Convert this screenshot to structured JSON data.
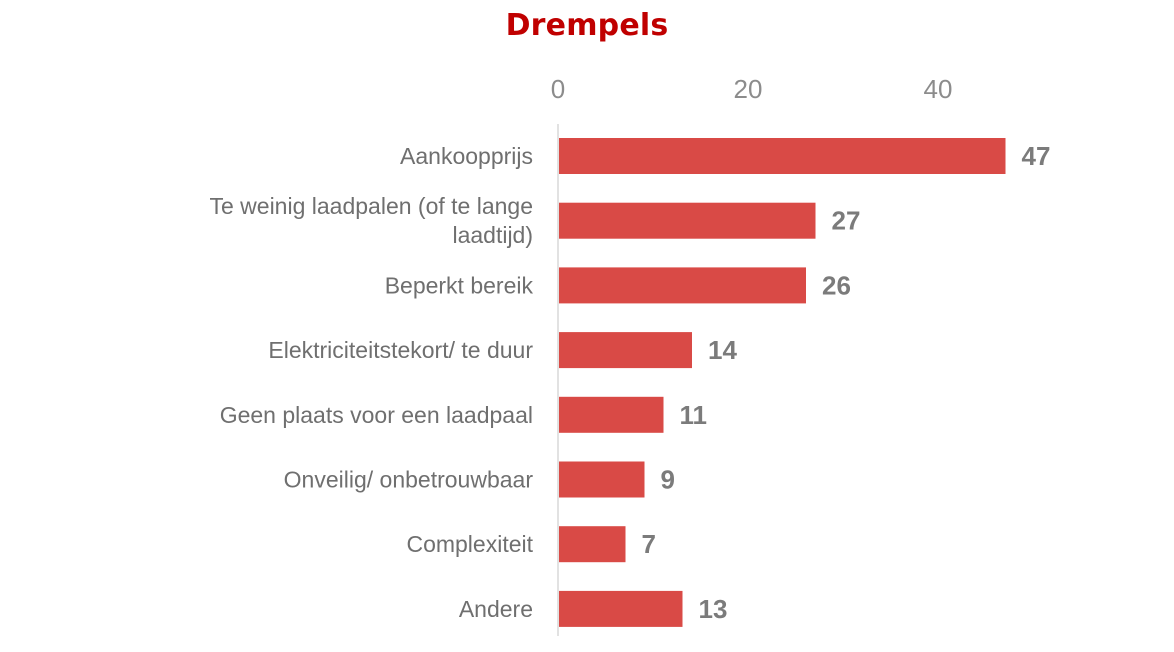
{
  "chart_data": {
    "type": "bar",
    "orientation": "horizontal",
    "title": "Drempels",
    "xlabel": "",
    "ylabel": "",
    "xlim": [
      0,
      47
    ],
    "x_ticks": [
      "0",
      "20",
      "40"
    ],
    "tick_position": "top",
    "grid": false,
    "legend": "none",
    "categories": [
      [
        "Aankoopprijs"
      ],
      [
        "Te weinig laadpalen (of te lange",
        "laadtijd)"
      ],
      [
        "Beperkt bereik"
      ],
      [
        "Elektriciteitstekort/ te duur"
      ],
      [
        "Geen plaats voor een laadpaal"
      ],
      [
        "Onveilig/ onbetrouwbaar"
      ],
      [
        "Complexiteit"
      ],
      [
        "Andere"
      ]
    ],
    "values": [
      47,
      27,
      26,
      14,
      11,
      9,
      7,
      13
    ],
    "colors": {
      "title": "#c00000",
      "bar": "#d94a46",
      "axis": "#d9d9d9",
      "tick_text": "#8c8c8c",
      "category_text": "#6f6f6f",
      "value_text": "#7b7b7b"
    }
  }
}
